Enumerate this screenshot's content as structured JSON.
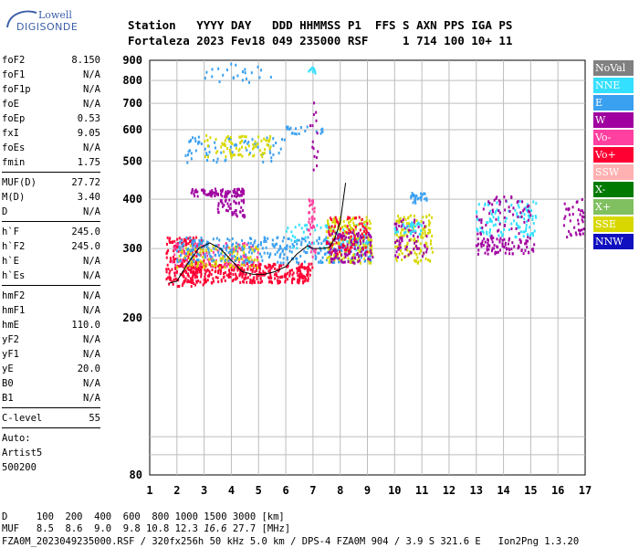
{
  "logo": {
    "line1": "Lowell",
    "line2": "DIGISONDE"
  },
  "header": {
    "line1": "Station   YYYY DAY   DDD HHMMSS P1  FFS S AXN PPS IGA PS",
    "line2": "Fortaleza 2023 Fev18 049 235000 RSF     1 714 100 10+ 11"
  },
  "params": [
    [
      {
        "label": "foF2",
        "value": "8.150"
      },
      {
        "label": "foF1",
        "value": "N/A"
      },
      {
        "label": "foF1p",
        "value": "N/A"
      },
      {
        "label": "foE",
        "value": "N/A"
      },
      {
        "label": "foEp",
        "value": "0.53"
      },
      {
        "label": "fxI",
        "value": "9.05"
      },
      {
        "label": "foEs",
        "value": "N/A"
      },
      {
        "label": "fmin",
        "value": "1.75"
      }
    ],
    [
      {
        "label": "MUF(D)",
        "value": "27.72"
      },
      {
        "label": "M(D)",
        "value": "3.40"
      },
      {
        "label": "D",
        "value": "N/A"
      }
    ],
    [
      {
        "label": "h`F",
        "value": "245.0"
      },
      {
        "label": "h`F2",
        "value": "245.0"
      },
      {
        "label": "h`E",
        "value": "N/A"
      },
      {
        "label": "h`Es",
        "value": "N/A"
      }
    ],
    [
      {
        "label": "hmF2",
        "value": "N/A"
      },
      {
        "label": "hmF1",
        "value": "N/A"
      },
      {
        "label": "hmE",
        "value": "110.0"
      },
      {
        "label": "yF2",
        "value": "N/A"
      },
      {
        "label": "yF1",
        "value": "N/A"
      },
      {
        "label": "yE",
        "value": "20.0"
      },
      {
        "label": "B0",
        "value": "N/A"
      },
      {
        "label": "B1",
        "value": "N/A"
      }
    ],
    [
      {
        "label": "C-level",
        "value": "55"
      }
    ]
  ],
  "auto": {
    "line1": "Auto:",
    "line2": "Artist5",
    "line3": "500200"
  },
  "legend": [
    {
      "label": "NoVal",
      "color": "#808080"
    },
    {
      "label": "NNE",
      "color": "#33e0ff"
    },
    {
      "label": "E",
      "color": "#3aa0f0"
    },
    {
      "label": "W",
      "color": "#a000a0"
    },
    {
      "label": "Vo-",
      "color": "#ff40a0"
    },
    {
      "label": "Vo+",
      "color": "#ff0033"
    },
    {
      "label": "SSW",
      "color": "#ffb0b0"
    },
    {
      "label": "X-",
      "color": "#007a00"
    },
    {
      "label": "X+",
      "color": "#80c060"
    },
    {
      "label": "SSE",
      "color": "#d8d800"
    },
    {
      "label": "NNW",
      "color": "#1010c0"
    }
  ],
  "footer": {
    "line1": "D     100  200  400  600  800 1000 1500 3000 [km]",
    "line2_pre": "MUF   8.5  8.6  9.0  9.8 10.8 12.3 ",
    "line2_em": "16.6",
    "line2_post": " 27.7 [MHz]",
    "line3": "FZA0M_2023049235000.RSF / 320fx256h 50 kHz 5.0 km / DPS-4 FZA0M 904 / 3.9 S 321.6 E   Ion2Png 1.3.20"
  },
  "chart_data": {
    "type": "scatter",
    "x_range": [
      1,
      17
    ],
    "y_range": [
      80,
      900
    ],
    "x_ticks": [
      1,
      2,
      3,
      4,
      5,
      6,
      7,
      8,
      9,
      10,
      11,
      12,
      13,
      14,
      15,
      16,
      17
    ],
    "y_ticks": [
      80,
      200,
      300,
      400,
      500,
      600,
      700,
      800,
      900
    ],
    "grid": true,
    "y_scale": "log",
    "trace": {
      "color": "#000000",
      "x": [
        1.7,
        2.0,
        2.4,
        2.8,
        3.2,
        3.6,
        4.0,
        4.4,
        4.8,
        5.2,
        5.6,
        6.0,
        6.4,
        6.8,
        7.0,
        7.3,
        7.6,
        7.8,
        8.0,
        8.2
      ],
      "y": [
        245,
        248,
        275,
        300,
        310,
        300,
        280,
        262,
        258,
        258,
        262,
        270,
        290,
        305,
        300,
        300,
        302,
        318,
        350,
        440
      ]
    },
    "clusters": [
      {
        "color": "#ff0033",
        "x": [
          1.6,
          3.0
        ],
        "y": [
          240,
          320
        ],
        "n": 200
      },
      {
        "color": "#ff0033",
        "x": [
          2.2,
          7.0
        ],
        "y": [
          245,
          275
        ],
        "n": 380
      },
      {
        "color": "#ff40a0",
        "x": [
          1.8,
          5.0
        ],
        "y": [
          270,
          310
        ],
        "n": 130
      },
      {
        "color": "#d8d800",
        "x": [
          2.0,
          5.0
        ],
        "y": [
          268,
          305
        ],
        "n": 130
      },
      {
        "color": "#3aa0f0",
        "x": [
          2.0,
          9.2
        ],
        "y": [
          275,
          320
        ],
        "n": 320
      },
      {
        "color": "#33e0ff",
        "x": [
          6.0,
          9.0
        ],
        "y": [
          295,
          345
        ],
        "n": 70
      },
      {
        "color": "#a000a0",
        "x": [
          2.5,
          4.5
        ],
        "y": [
          405,
          425
        ],
        "n": 90
      },
      {
        "color": "#a000a0",
        "x": [
          3.5,
          4.5
        ],
        "y": [
          360,
          400
        ],
        "n": 50
      },
      {
        "color": "#ff40a0",
        "x": [
          6.8,
          7.1
        ],
        "y": [
          280,
          400
        ],
        "n": 40
      },
      {
        "color": "#d8d800",
        "x": [
          7.5,
          9.2
        ],
        "y": [
          275,
          360
        ],
        "n": 170
      },
      {
        "color": "#a000a0",
        "x": [
          7.5,
          9.2
        ],
        "y": [
          275,
          330
        ],
        "n": 120
      },
      {
        "color": "#ff0033",
        "x": [
          7.5,
          9.0
        ],
        "y": [
          290,
          360
        ],
        "n": 70
      },
      {
        "color": "#d8d800",
        "x": [
          10.0,
          11.4
        ],
        "y": [
          275,
          365
        ],
        "n": 130
      },
      {
        "color": "#a000a0",
        "x": [
          10.0,
          11.2
        ],
        "y": [
          285,
          355
        ],
        "n": 60
      },
      {
        "color": "#33e0ff",
        "x": [
          10.0,
          11.0
        ],
        "y": [
          325,
          350
        ],
        "n": 35
      },
      {
        "color": "#3aa0f0",
        "x": [
          10.6,
          11.2
        ],
        "y": [
          390,
          415
        ],
        "n": 30
      },
      {
        "color": "#33e0ff",
        "x": [
          13.0,
          15.2
        ],
        "y": [
          320,
          395
        ],
        "n": 110
      },
      {
        "color": "#a000a0",
        "x": [
          13.0,
          15.2
        ],
        "y": [
          290,
          320
        ],
        "n": 90
      },
      {
        "color": "#a000a0",
        "x": [
          13.0,
          15.0
        ],
        "y": [
          320,
          410
        ],
        "n": 60
      },
      {
        "color": "#a000a0",
        "x": [
          16.2,
          17.0
        ],
        "y": [
          320,
          400
        ],
        "n": 40
      },
      {
        "color": "#3aa0f0",
        "x": [
          2.3,
          6.0
        ],
        "y": [
          495,
          575
        ],
        "n": 70
      },
      {
        "color": "#d8d800",
        "x": [
          3.0,
          5.5
        ],
        "y": [
          510,
          580
        ],
        "n": 80
      },
      {
        "color": "#3aa0f0",
        "x": [
          3.0,
          5.5
        ],
        "y": [
          790,
          880
        ],
        "n": 25
      },
      {
        "color": "#33e0ff",
        "x": [
          6.8,
          7.1
        ],
        "y": [
          830,
          870
        ],
        "n": 10
      },
      {
        "color": "#3aa0f0",
        "x": [
          6.0,
          7.5
        ],
        "y": [
          585,
          610
        ],
        "n": 20
      },
      {
        "color": "#a000a0",
        "x": [
          6.9,
          7.2
        ],
        "y": [
          460,
          720
        ],
        "n": 15
      }
    ]
  }
}
